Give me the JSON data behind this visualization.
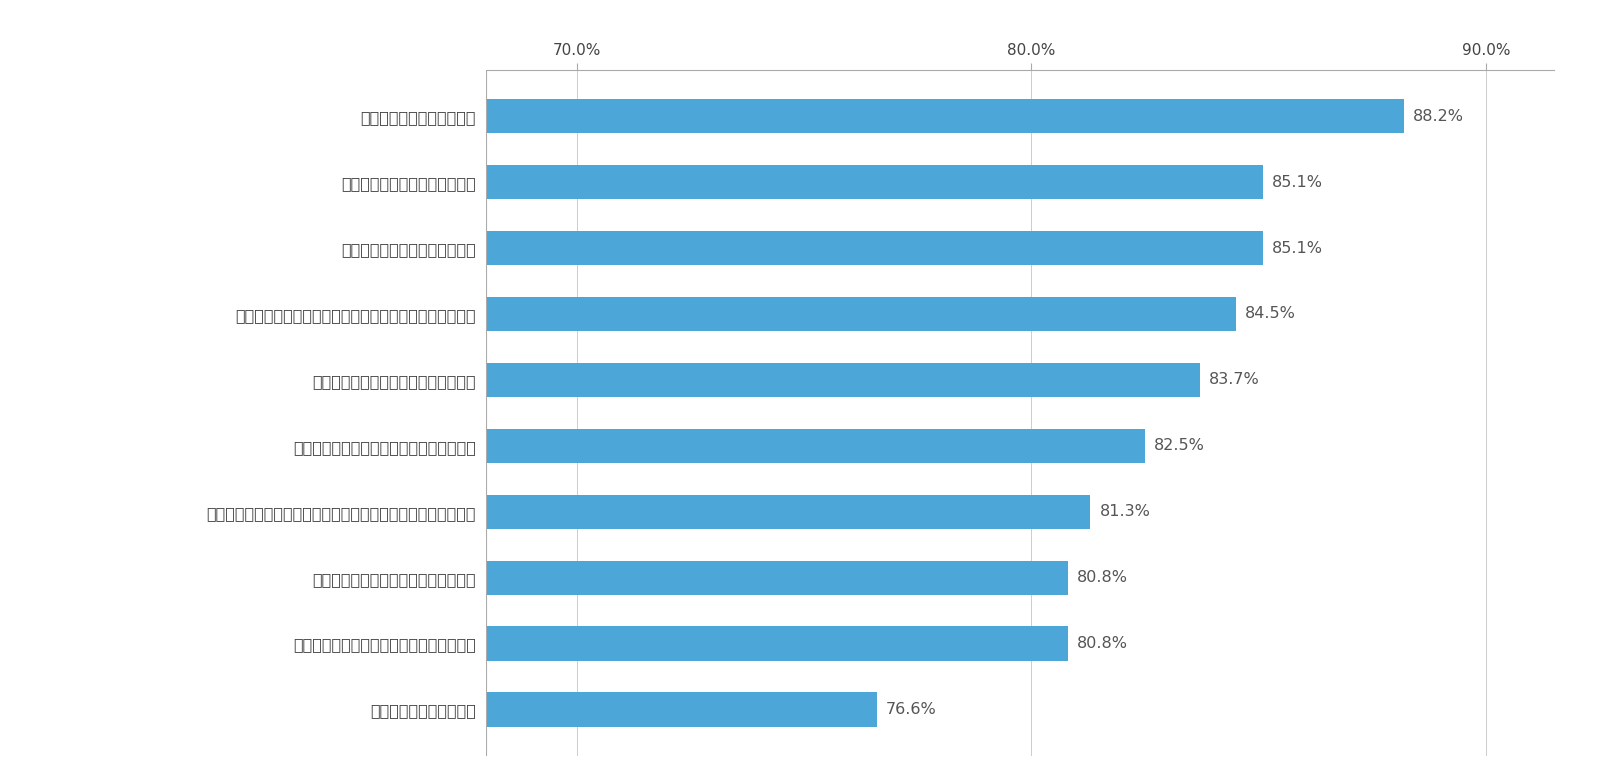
{
  "categories": [
    "住宅価格が手ごろなこと",
    "犯罪や交通事故が少ないエリアであること",
    "公共交通機関へのアクセスが良いこと",
    "地震や台風などの災害が起こりにくい建物やエリアであること",
    "騒音や大気汚染が少ないエリアであること",
    "自分や家族に適した間取りであること",
    "空調やキッチンなどの住宅設備がしっかりしていること",
    "プライバシーが確保できること",
    "日当たりなどの位置が良いこと",
    "住宅周辺の治安が良いこと"
  ],
  "values": [
    76.6,
    80.8,
    80.8,
    81.3,
    82.5,
    83.7,
    84.5,
    85.1,
    85.1,
    88.2
  ],
  "bar_color": "#4DA6D8",
  "label_color": "#444444",
  "value_color": "#555555",
  "background_color": "#ffffff",
  "xlim_left": 68.0,
  "xlim_right": 91.5,
  "xticks": [
    70.0,
    80.0,
    90.0
  ],
  "xtick_labels": [
    "70.0%",
    "80.0%",
    "90.0%"
  ],
  "bar_height": 0.52,
  "label_fontsize": 11.5,
  "tick_fontsize": 11,
  "value_fontsize": 11.5
}
